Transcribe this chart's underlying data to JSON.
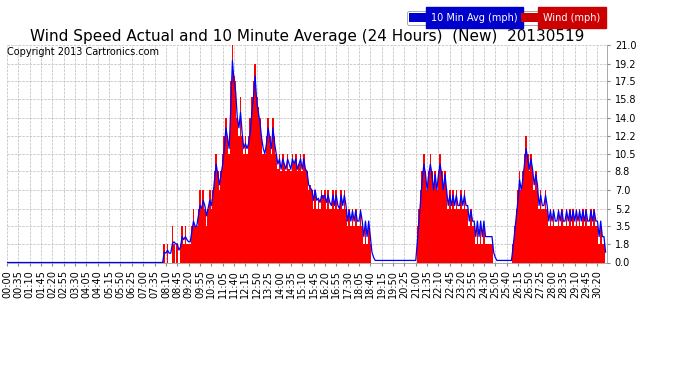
{
  "title": "Wind Speed Actual and 10 Minute Average (24 Hours)  (New)  20130519",
  "copyright": "Copyright 2013 Cartronics.com",
  "yticks": [
    0.0,
    1.8,
    3.5,
    5.2,
    7.0,
    8.8,
    10.5,
    12.2,
    14.0,
    15.8,
    17.5,
    19.2,
    21.0
  ],
  "ymax": 21.0,
  "ymin": 0.0,
  "legend_label_avg": "10 Min Avg (mph)",
  "legend_label_wind": "Wind (mph)",
  "legend_avg_bg": "#0000cc",
  "legend_wind_bg": "#cc0000",
  "bar_color": "#ff0000",
  "line_color": "#0000ff",
  "background_color": "#ffffff",
  "grid_color": "#bbbbbb",
  "title_fontsize": 11,
  "copyright_fontsize": 7,
  "tick_fontsize": 7,
  "wind_data": [
    0.0,
    0.0,
    0.0,
    0.0,
    0.0,
    0.0,
    0.0,
    0.0,
    0.0,
    0.0,
    0.0,
    0.0,
    0.0,
    0.0,
    0.0,
    0.0,
    0.0,
    0.0,
    0.0,
    0.0,
    0.0,
    0.0,
    0.0,
    0.0,
    0.0,
    0.0,
    0.0,
    0.0,
    0.0,
    0.0,
    0.0,
    0.0,
    0.0,
    0.0,
    0.0,
    0.0,
    0.0,
    0.0,
    0.0,
    0.0,
    0.0,
    0.0,
    0.0,
    0.0,
    0.0,
    0.0,
    0.0,
    0.0,
    0.0,
    0.0,
    0.0,
    0.0,
    0.0,
    0.0,
    0.0,
    0.0,
    0.0,
    0.0,
    0.0,
    0.0,
    0.0,
    0.0,
    0.0,
    0.0,
    0.0,
    0.0,
    0.0,
    0.0,
    0.0,
    0.0,
    0.0,
    0.0,
    0.0,
    0.0,
    0.0,
    0.0,
    0.0,
    0.0,
    0.0,
    0.0,
    0.0,
    0.0,
    0.0,
    0.0,
    0.0,
    0.0,
    0.0,
    0.0,
    0.0,
    0.0,
    0.0,
    0.0,
    0.0,
    0.0,
    0.0,
    0.0,
    0.0,
    1.8,
    0.0,
    1.8,
    0.0,
    0.0,
    3.5,
    1.8,
    0.0,
    1.8,
    0.0,
    1.8,
    3.5,
    1.8,
    3.5,
    1.8,
    1.8,
    1.8,
    3.5,
    5.2,
    3.5,
    3.5,
    5.2,
    7.0,
    5.2,
    7.0,
    5.2,
    3.5,
    5.2,
    7.0,
    5.2,
    7.0,
    8.8,
    10.5,
    8.8,
    7.0,
    8.8,
    10.5,
    12.2,
    14.0,
    12.2,
    10.5,
    17.5,
    21.0,
    18.0,
    17.5,
    14.0,
    12.2,
    16.0,
    12.2,
    10.5,
    12.2,
    10.5,
    12.2,
    14.0,
    16.0,
    17.5,
    19.2,
    16.0,
    15.0,
    14.0,
    12.2,
    10.5,
    10.5,
    12.2,
    14.0,
    12.2,
    10.5,
    14.0,
    12.2,
    10.5,
    9.0,
    10.5,
    8.8,
    10.5,
    9.5,
    8.8,
    10.5,
    9.0,
    8.8,
    10.5,
    9.5,
    10.5,
    8.8,
    9.5,
    10.5,
    8.8,
    10.5,
    9.0,
    8.8,
    7.0,
    7.5,
    7.0,
    5.2,
    7.0,
    5.2,
    6.0,
    5.2,
    7.0,
    6.5,
    7.0,
    5.2,
    7.0,
    5.2,
    5.2,
    7.0,
    5.2,
    7.0,
    5.2,
    5.2,
    7.0,
    5.2,
    7.0,
    5.2,
    3.5,
    5.2,
    3.5,
    5.2,
    3.5,
    5.2,
    3.5,
    3.5,
    5.2,
    3.5,
    1.8,
    3.5,
    1.8,
    3.5,
    1.8,
    0.0,
    0.0,
    0.0,
    0.0,
    0.0,
    0.0,
    0.0,
    0.0,
    0.0,
    0.0,
    0.0,
    0.0,
    0.0,
    0.0,
    0.0,
    0.0,
    0.0,
    0.0,
    0.0,
    0.0,
    0.0,
    0.0,
    0.0,
    0.0,
    0.0,
    0.0,
    0.0,
    0.0,
    3.5,
    5.2,
    7.0,
    8.8,
    10.5,
    8.8,
    7.0,
    8.8,
    10.5,
    8.8,
    7.0,
    8.8,
    7.0,
    8.8,
    10.5,
    8.8,
    7.0,
    8.8,
    7.0,
    5.2,
    7.0,
    5.2,
    7.0,
    5.2,
    7.0,
    5.2,
    5.2,
    7.0,
    5.2,
    7.0,
    5.2,
    5.2,
    3.5,
    5.2,
    3.5,
    3.5,
    1.8,
    3.5,
    1.8,
    3.5,
    1.8,
    3.5,
    1.8,
    1.8,
    1.8,
    1.8,
    1.8,
    0.0,
    0.0,
    0.0,
    0.0,
    0.0,
    0.0,
    0.0,
    0.0,
    0.0,
    0.0,
    0.0,
    0.0,
    1.8,
    3.5,
    5.2,
    7.0,
    8.8,
    7.0,
    8.8,
    10.5,
    12.2,
    10.5,
    8.8,
    10.5,
    8.8,
    7.0,
    8.8,
    7.0,
    5.2,
    7.0,
    5.2,
    5.2,
    7.0,
    5.2,
    3.5,
    5.2,
    3.5,
    5.2,
    3.5,
    3.5,
    5.2,
    3.5,
    5.2,
    3.5,
    3.5,
    5.2,
    3.5,
    5.2,
    3.5,
    5.2,
    3.5,
    5.2,
    3.5,
    5.2,
    3.5,
    5.2,
    3.5,
    5.2,
    3.5,
    3.5,
    5.2,
    3.5,
    5.2,
    3.5,
    3.5,
    1.8,
    3.5,
    1.8,
    1.8,
    0.0
  ],
  "avg_data": [
    0.0,
    0.0,
    0.0,
    0.0,
    0.0,
    0.0,
    0.0,
    0.0,
    0.0,
    0.0,
    0.0,
    0.0,
    0.0,
    0.0,
    0.0,
    0.0,
    0.0,
    0.0,
    0.0,
    0.0,
    0.0,
    0.0,
    0.0,
    0.0,
    0.0,
    0.0,
    0.0,
    0.0,
    0.0,
    0.0,
    0.0,
    0.0,
    0.0,
    0.0,
    0.0,
    0.0,
    0.0,
    0.0,
    0.0,
    0.0,
    0.0,
    0.0,
    0.0,
    0.0,
    0.0,
    0.0,
    0.0,
    0.0,
    0.0,
    0.0,
    0.0,
    0.0,
    0.0,
    0.0,
    0.0,
    0.0,
    0.0,
    0.0,
    0.0,
    0.0,
    0.0,
    0.0,
    0.0,
    0.0,
    0.0,
    0.0,
    0.0,
    0.0,
    0.0,
    0.0,
    0.0,
    0.0,
    0.0,
    0.0,
    0.0,
    0.0,
    0.0,
    0.0,
    0.0,
    0.0,
    0.0,
    0.0,
    0.0,
    0.0,
    0.0,
    0.0,
    0.0,
    0.0,
    0.0,
    0.0,
    0.0,
    0.0,
    0.0,
    0.0,
    0.0,
    0.0,
    0.0,
    1.0,
    0.9,
    1.2,
    0.9,
    0.9,
    1.8,
    2.0,
    1.8,
    1.8,
    1.2,
    1.5,
    2.5,
    2.2,
    2.5,
    2.2,
    2.0,
    2.0,
    3.0,
    4.0,
    3.5,
    3.5,
    4.5,
    5.5,
    5.2,
    6.0,
    5.5,
    4.5,
    5.2,
    6.0,
    5.5,
    6.5,
    8.0,
    9.5,
    8.5,
    7.5,
    8.5,
    9.5,
    11.0,
    13.0,
    12.0,
    11.0,
    15.0,
    19.5,
    17.5,
    16.5,
    14.0,
    13.0,
    14.5,
    12.5,
    11.0,
    11.5,
    11.0,
    11.5,
    12.5,
    14.5,
    16.0,
    18.0,
    15.5,
    14.5,
    13.5,
    12.0,
    11.0,
    10.5,
    11.5,
    13.0,
    12.0,
    11.0,
    13.0,
    11.5,
    10.5,
    9.5,
    10.0,
    9.0,
    10.0,
    9.5,
    9.0,
    10.0,
    9.5,
    9.0,
    10.0,
    9.5,
    10.0,
    9.0,
    9.5,
    10.0,
    9.0,
    10.0,
    9.0,
    8.8,
    7.5,
    7.2,
    7.0,
    6.0,
    7.0,
    6.0,
    6.2,
    5.8,
    6.5,
    6.2,
    6.5,
    5.8,
    6.5,
    5.8,
    5.5,
    6.5,
    5.5,
    6.5,
    5.5,
    5.2,
    6.5,
    5.5,
    6.5,
    5.5,
    4.0,
    5.0,
    4.0,
    5.0,
    4.0,
    5.0,
    4.0,
    4.0,
    5.0,
    4.0,
    2.5,
    4.0,
    2.5,
    4.0,
    2.5,
    1.0,
    0.5,
    0.2,
    0.2,
    0.2,
    0.2,
    0.2,
    0.2,
    0.2,
    0.2,
    0.2,
    0.2,
    0.2,
    0.2,
    0.2,
    0.2,
    0.2,
    0.2,
    0.2,
    0.2,
    0.2,
    0.2,
    0.2,
    0.2,
    0.2,
    0.2,
    0.2,
    0.2,
    2.0,
    4.0,
    6.0,
    8.0,
    9.5,
    8.5,
    7.0,
    8.5,
    9.5,
    8.5,
    7.0,
    8.5,
    7.0,
    8.5,
    9.5,
    8.5,
    7.0,
    8.5,
    7.0,
    5.5,
    6.5,
    5.5,
    6.5,
    5.5,
    6.5,
    5.5,
    5.5,
    6.5,
    5.5,
    6.5,
    5.5,
    5.5,
    4.0,
    5.0,
    4.0,
    4.0,
    2.5,
    4.0,
    2.5,
    4.0,
    2.5,
    4.0,
    2.5,
    2.5,
    2.5,
    2.5,
    2.5,
    1.0,
    0.5,
    0.2,
    0.2,
    0.2,
    0.2,
    0.2,
    0.2,
    0.2,
    0.2,
    0.2,
    0.2,
    1.5,
    3.0,
    4.5,
    6.0,
    8.0,
    7.0,
    8.0,
    9.5,
    11.0,
    10.0,
    9.0,
    10.0,
    9.0,
    7.5,
    8.5,
    7.5,
    5.5,
    6.5,
    5.5,
    5.5,
    6.5,
    5.5,
    4.0,
    5.0,
    4.0,
    5.0,
    4.0,
    4.0,
    5.0,
    4.0,
    5.0,
    4.0,
    4.0,
    5.0,
    4.0,
    5.0,
    4.0,
    5.0,
    4.0,
    5.0,
    4.0,
    5.0,
    4.0,
    5.0,
    4.0,
    5.0,
    4.0,
    4.0,
    5.0,
    4.0,
    5.0,
    4.0,
    4.0,
    2.5,
    4.0,
    2.5,
    2.5,
    1.0
  ]
}
